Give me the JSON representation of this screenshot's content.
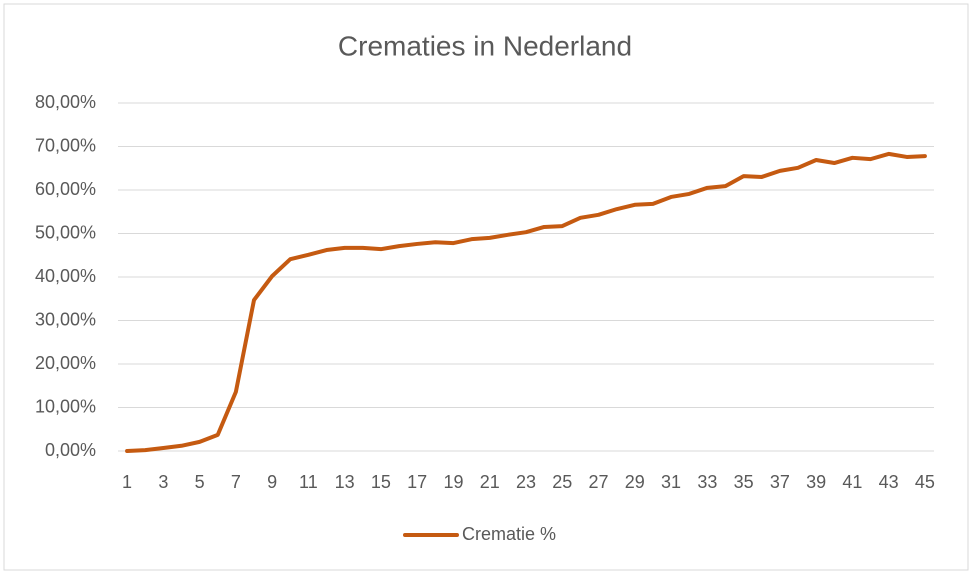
{
  "chart_data": {
    "type": "line",
    "title": "Crematies in Nederland",
    "categories": [
      1,
      null,
      3,
      null,
      5,
      null,
      7,
      null,
      9,
      null,
      11,
      null,
      13,
      null,
      15,
      null,
      17,
      null,
      19,
      null,
      21,
      null,
      23,
      null,
      25,
      null,
      27,
      null,
      29,
      null,
      31,
      null,
      33,
      null,
      35,
      null,
      37,
      null,
      39,
      null,
      41,
      null,
      43,
      null,
      45
    ],
    "series": [
      {
        "name": "Crematie %",
        "color": "#c55a11",
        "values": [
          0,
          0.2,
          0.7,
          1.2,
          2.1,
          3.7,
          13.6,
          34.7,
          40.2,
          44.1,
          45.1,
          46.2,
          46.7,
          46.7,
          46.4,
          47.1,
          47.6,
          48.0,
          47.8,
          48.7,
          49.0,
          49.7,
          50.3,
          51.5,
          51.7,
          53.6,
          54.3,
          55.6,
          56.6,
          56.8,
          58.4,
          59.1,
          60.5,
          60.9,
          63.2,
          63.0,
          64.4,
          65.1,
          66.9,
          66.2,
          67.4,
          67.1,
          68.3,
          67.6,
          67.8
        ]
      }
    ],
    "ylim": [
      0,
      80
    ],
    "yticks": [
      {
        "value": 0,
        "label": "0,00%"
      },
      {
        "value": 10,
        "label": "10,00%"
      },
      {
        "value": 20,
        "label": "20,00%"
      },
      {
        "value": 30,
        "label": "30,00%"
      },
      {
        "value": 40,
        "label": "40,00%"
      },
      {
        "value": 50,
        "label": "50,00%"
      },
      {
        "value": 60,
        "label": "60,00%"
      },
      {
        "value": 70,
        "label": "70,00%"
      },
      {
        "value": 80,
        "label": "80,00%"
      }
    ],
    "grid": true,
    "legend": "bottom"
  }
}
